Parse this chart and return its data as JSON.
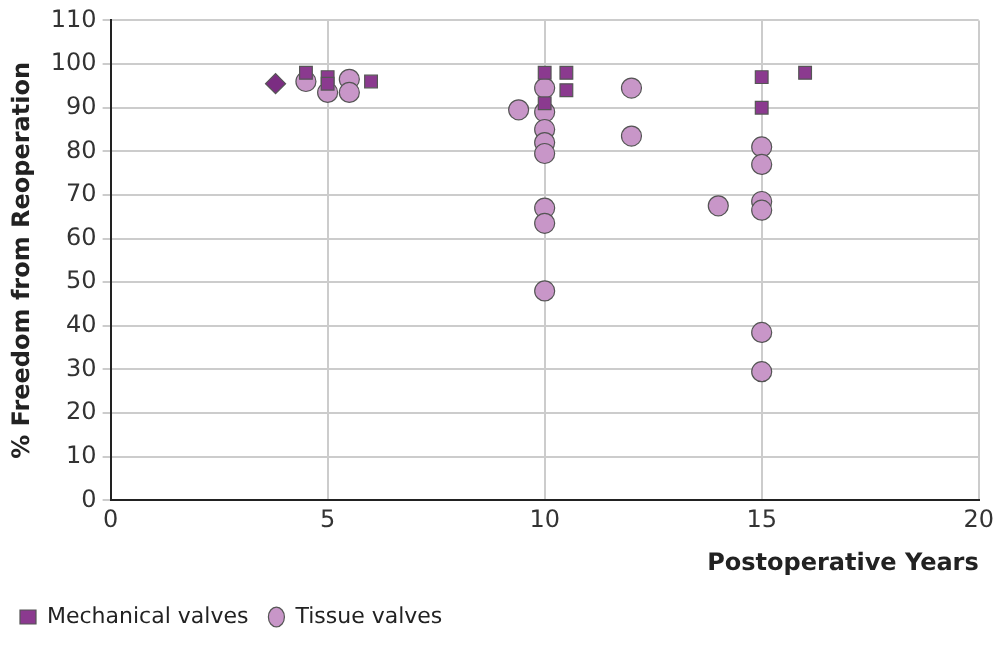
{
  "chart_data": {
    "type": "scatter",
    "xlabel": "Postoperative Years",
    "ylabel": "% Freedom from Reoperation",
    "xlim": [
      0,
      20
    ],
    "xticks": [
      0,
      5,
      10,
      15,
      20
    ],
    "ylim": [
      0,
      110
    ],
    "yticks": [
      0,
      10,
      20,
      30,
      40,
      50,
      60,
      70,
      80,
      90,
      100,
      110
    ],
    "grid": true,
    "legend": "bottom",
    "series": [
      {
        "color": "#7b2d82",
        "marker": "diamond",
        "x": [
          3.8
        ],
        "values": [
          95.5
        ]
      },
      {
        "name": "Mechanical valves",
        "color": "#8b3a8f",
        "marker": "square",
        "x": [
          4.5,
          5,
          5,
          6,
          10,
          10,
          10.5,
          10.5,
          15,
          15,
          16
        ],
        "values": [
          98,
          97,
          95.5,
          96,
          98,
          91,
          98,
          94,
          97,
          90,
          98
        ]
      },
      {
        "name": "Tissue valves",
        "color": "#c896c8",
        "marker": "circle",
        "x": [
          4.5,
          5,
          5.5,
          5.5,
          9.4,
          10,
          10,
          10,
          10,
          10,
          10,
          10,
          10,
          12,
          12,
          14,
          15,
          15,
          15,
          15,
          15,
          15
        ],
        "values": [
          96,
          93.5,
          96.5,
          93.5,
          89.5,
          94.5,
          89,
          85,
          82,
          79.5,
          67,
          63.5,
          48,
          94.5,
          83.5,
          67.5,
          81,
          77,
          68.5,
          66.5,
          38.5,
          29.5
        ]
      }
    ]
  }
}
